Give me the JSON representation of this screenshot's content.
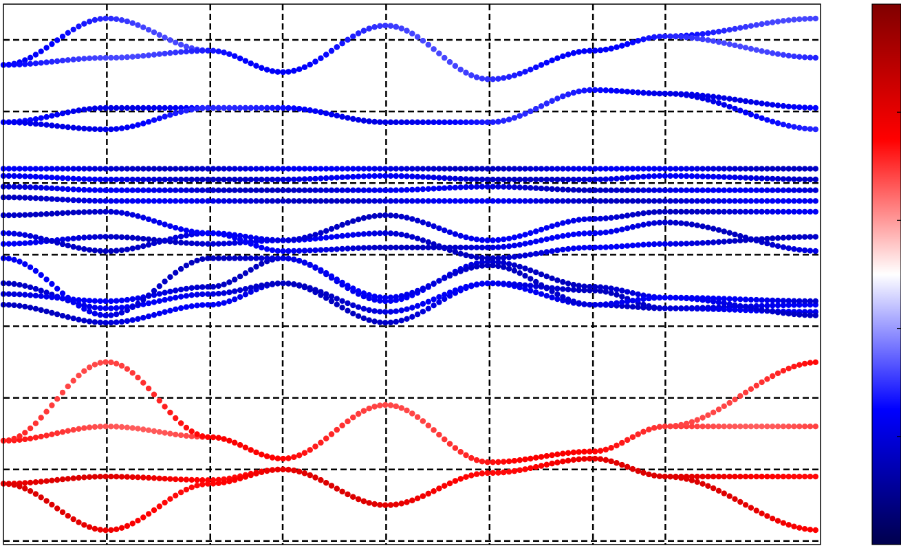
{
  "chart_data": {
    "type": "scatter",
    "title": "",
    "xlabel": "",
    "ylabel": "",
    "xlim": [
      0,
      7.9
    ],
    "ylim": [
      -1.05,
      6.5
    ],
    "high_symmetry_x": [
      1.0,
      2.0,
      2.7,
      3.7,
      4.7,
      5.7,
      6.4
    ],
    "grid": "dashed",
    "colorbar": {
      "cmap": "seismic",
      "placement": "right",
      "colors": [
        "#00004d",
        "#0000ff",
        "#ffffff",
        "#ff0000",
        "#800000"
      ]
    },
    "series": [
      {
        "color_value": 0.78,
        "values": [
          [
            0,
            -0.2
          ],
          [
            1.0,
            -0.1
          ],
          [
            2.0,
            -0.15
          ],
          [
            2.7,
            0.0
          ],
          [
            3.7,
            -0.5
          ],
          [
            4.7,
            -0.05
          ],
          [
            5.7,
            0.15
          ],
          [
            6.4,
            -0.1
          ],
          [
            7.9,
            -0.85
          ]
        ]
      },
      {
        "color_value": 0.78,
        "values": [
          [
            0,
            -0.2
          ],
          [
            1.0,
            -0.85
          ],
          [
            2.0,
            -0.2
          ],
          [
            2.7,
            0.0
          ],
          [
            3.7,
            -0.5
          ],
          [
            4.7,
            -0.05
          ],
          [
            5.7,
            0.15
          ],
          [
            6.4,
            -0.1
          ],
          [
            7.9,
            -0.1
          ]
        ]
      },
      {
        "color_value": 0.7,
        "values": [
          [
            0,
            0.4
          ],
          [
            1.0,
            0.6
          ],
          [
            2.0,
            0.45
          ],
          [
            2.7,
            0.15
          ],
          [
            3.7,
            0.9
          ],
          [
            4.7,
            0.1
          ],
          [
            5.7,
            0.25
          ],
          [
            6.4,
            0.6
          ],
          [
            7.9,
            0.6
          ]
        ]
      },
      {
        "color_value": 0.72,
        "values": [
          [
            0,
            0.4
          ],
          [
            1.0,
            1.5
          ],
          [
            2.0,
            0.45
          ],
          [
            2.7,
            0.15
          ],
          [
            3.7,
            0.9
          ],
          [
            4.7,
            0.1
          ],
          [
            5.7,
            0.25
          ],
          [
            6.4,
            0.6
          ],
          [
            7.9,
            1.5
          ]
        ]
      },
      {
        "color_value": 0.2,
        "values": [
          [
            0,
            2.3
          ],
          [
            1.0,
            2.05
          ],
          [
            2.0,
            2.3
          ],
          [
            2.7,
            2.6
          ],
          [
            3.7,
            2.05
          ],
          [
            4.7,
            2.6
          ],
          [
            5.7,
            2.3
          ],
          [
            6.4,
            2.25
          ],
          [
            7.9,
            2.3
          ]
        ]
      },
      {
        "color_value": 0.2,
        "values": [
          [
            0,
            2.6
          ],
          [
            1.0,
            2.25
          ],
          [
            2.0,
            2.45
          ],
          [
            2.7,
            2.6
          ],
          [
            3.7,
            2.2
          ],
          [
            4.7,
            2.6
          ],
          [
            5.7,
            2.5
          ],
          [
            6.4,
            2.25
          ],
          [
            7.9,
            2.2
          ]
        ]
      },
      {
        "color_value": 0.2,
        "values": [
          [
            0,
            2.45
          ],
          [
            1.0,
            2.35
          ],
          [
            2.0,
            2.55
          ],
          [
            2.7,
            2.95
          ],
          [
            3.7,
            2.35
          ],
          [
            4.7,
            2.9
          ],
          [
            5.7,
            2.55
          ],
          [
            6.4,
            2.4
          ],
          [
            7.9,
            2.35
          ]
        ]
      },
      {
        "color_value": 0.2,
        "values": [
          [
            0,
            2.95
          ],
          [
            1.0,
            2.15
          ],
          [
            2.0,
            2.95
          ],
          [
            2.7,
            2.95
          ],
          [
            3.7,
            2.4
          ],
          [
            4.7,
            2.85
          ],
          [
            5.7,
            2.3
          ],
          [
            6.4,
            2.4
          ],
          [
            7.9,
            2.15
          ]
        ]
      },
      {
        "color_value": 0.2,
        "values": [
          [
            0,
            3.15
          ],
          [
            1.0,
            3.25
          ],
          [
            2.0,
            3.15
          ],
          [
            2.7,
            3.2
          ],
          [
            3.7,
            3.3
          ],
          [
            4.7,
            2.95
          ],
          [
            5.7,
            3.1
          ],
          [
            6.4,
            3.15
          ],
          [
            7.9,
            3.25
          ]
        ]
      },
      {
        "color_value": 0.2,
        "values": [
          [
            0,
            3.3
          ],
          [
            1.0,
            3.05
          ],
          [
            2.0,
            3.3
          ],
          [
            2.7,
            3.05
          ],
          [
            3.7,
            3.1
          ],
          [
            4.7,
            3.1
          ],
          [
            5.7,
            3.3
          ],
          [
            6.4,
            3.45
          ],
          [
            7.9,
            3.05
          ]
        ]
      },
      {
        "color_value": 0.2,
        "values": [
          [
            0,
            3.55
          ],
          [
            1.0,
            3.6
          ],
          [
            2.0,
            3.3
          ],
          [
            2.7,
            3.2
          ],
          [
            3.7,
            3.55
          ],
          [
            4.7,
            3.2
          ],
          [
            5.7,
            3.5
          ],
          [
            6.4,
            3.6
          ],
          [
            7.9,
            3.6
          ]
        ]
      },
      {
        "color_value": 0.2,
        "values": [
          [
            0,
            3.8
          ],
          [
            1.0,
            3.75
          ],
          [
            2.0,
            3.75
          ],
          [
            2.7,
            3.75
          ],
          [
            3.7,
            3.75
          ],
          [
            4.7,
            3.75
          ],
          [
            5.7,
            3.75
          ],
          [
            6.4,
            3.75
          ],
          [
            7.9,
            3.75
          ]
        ]
      },
      {
        "color_value": 0.2,
        "values": [
          [
            0,
            3.95
          ],
          [
            1.0,
            3.9
          ],
          [
            2.0,
            3.9
          ],
          [
            2.7,
            3.9
          ],
          [
            3.7,
            3.9
          ],
          [
            4.7,
            3.95
          ],
          [
            5.7,
            3.9
          ],
          [
            6.4,
            3.9
          ],
          [
            7.9,
            3.9
          ]
        ]
      },
      {
        "color_value": 0.2,
        "values": [
          [
            0,
            4.1
          ],
          [
            1.0,
            4.05
          ],
          [
            2.0,
            4.05
          ],
          [
            2.7,
            4.05
          ],
          [
            3.7,
            4.1
          ],
          [
            4.7,
            4.05
          ],
          [
            5.7,
            4.05
          ],
          [
            6.4,
            4.1
          ],
          [
            7.9,
            4.05
          ]
        ]
      },
      {
        "color_value": 0.2,
        "values": [
          [
            0,
            4.2
          ],
          [
            1.0,
            4.2
          ],
          [
            2.0,
            4.2
          ],
          [
            2.7,
            4.2
          ],
          [
            3.7,
            4.2
          ],
          [
            4.7,
            4.2
          ],
          [
            5.7,
            4.2
          ],
          [
            6.4,
            4.2
          ],
          [
            7.9,
            4.2
          ]
        ]
      },
      {
        "color_value": 0.25,
        "values": [
          [
            0,
            4.85
          ],
          [
            1.0,
            5.05
          ],
          [
            2.0,
            5.05
          ],
          [
            2.7,
            5.05
          ],
          [
            3.7,
            4.85
          ],
          [
            4.7,
            4.85
          ],
          [
            5.7,
            5.3
          ],
          [
            6.4,
            5.25
          ],
          [
            7.9,
            5.05
          ]
        ]
      },
      {
        "color_value": 0.25,
        "values": [
          [
            0,
            4.85
          ],
          [
            1.0,
            4.75
          ],
          [
            2.0,
            5.05
          ],
          [
            2.7,
            5.05
          ],
          [
            3.7,
            4.85
          ],
          [
            4.7,
            4.85
          ],
          [
            5.7,
            5.3
          ],
          [
            6.4,
            5.25
          ],
          [
            7.9,
            4.75
          ]
        ]
      },
      {
        "color_value": 0.28,
        "values": [
          [
            0,
            5.65
          ],
          [
            1.0,
            6.3
          ],
          [
            2.0,
            5.85
          ],
          [
            2.7,
            5.55
          ],
          [
            3.7,
            6.2
          ],
          [
            4.7,
            5.45
          ],
          [
            5.7,
            5.85
          ],
          [
            6.4,
            6.05
          ],
          [
            7.9,
            6.3
          ]
        ]
      },
      {
        "color_value": 0.28,
        "values": [
          [
            0,
            5.65
          ],
          [
            1.0,
            5.75
          ],
          [
            2.0,
            5.85
          ],
          [
            2.7,
            5.55
          ],
          [
            3.7,
            6.2
          ],
          [
            4.7,
            5.45
          ],
          [
            5.7,
            5.85
          ],
          [
            6.4,
            6.05
          ],
          [
            7.9,
            5.75
          ]
        ]
      }
    ]
  }
}
